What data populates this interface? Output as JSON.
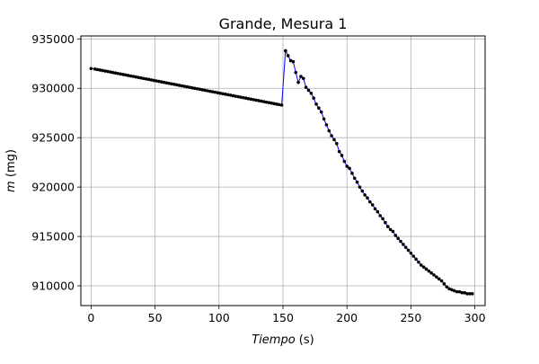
{
  "chart_data": {
    "type": "line",
    "title": "Grande, Mesura 1",
    "xlabel_var": "Tiempo",
    "xlabel_unit": " (s)",
    "ylabel_var": "m",
    "ylabel_unit": " (mg)",
    "xlim": [
      -8,
      308
    ],
    "ylim": [
      908000,
      935300
    ],
    "xticks": [
      0,
      50,
      100,
      150,
      200,
      250,
      300
    ],
    "yticks": [
      910000,
      915000,
      920000,
      925000,
      930000,
      935000
    ],
    "grid": true,
    "line_color": "#0000ff",
    "marker_color": "#000000",
    "series": [
      {
        "x": [
          0,
          3,
          5,
          7,
          9,
          11,
          13,
          15,
          17,
          19,
          21,
          23,
          25,
          27,
          29,
          31,
          33,
          35,
          37,
          39,
          41,
          43,
          45,
          47,
          49,
          51,
          53,
          55,
          57,
          59,
          61,
          63,
          65,
          67,
          69,
          71,
          73,
          75,
          77,
          79,
          81,
          83,
          85,
          87,
          89,
          91,
          93,
          95,
          97,
          99,
          101,
          103,
          105,
          107,
          109,
          111,
          113,
          115,
          117,
          119,
          121,
          123,
          125,
          127,
          129,
          131,
          133,
          135,
          137,
          139,
          141,
          143,
          145,
          147,
          149,
          152,
          154,
          156,
          158,
          160,
          162,
          164,
          166,
          168,
          170,
          172,
          174,
          176,
          178,
          180,
          182,
          184,
          186,
          188,
          190,
          192,
          194,
          196,
          198,
          200,
          202,
          204,
          206,
          208,
          210,
          212,
          214,
          216,
          218,
          220,
          222,
          224,
          226,
          228,
          230,
          232,
          234,
          236,
          238,
          240,
          242,
          244,
          246,
          248,
          250,
          252,
          254,
          256,
          258,
          260,
          262,
          264,
          266,
          268,
          270,
          272,
          274,
          276,
          278,
          280,
          282,
          284,
          286,
          288,
          290,
          292,
          294,
          296,
          298
        ],
        "y": [
          932000,
          931950,
          931900,
          931850,
          931800,
          931750,
          931700,
          931650,
          931600,
          931550,
          931500,
          931450,
          931400,
          931350,
          931300,
          931250,
          931200,
          931150,
          931100,
          931050,
          931000,
          930950,
          930900,
          930850,
          930800,
          930750,
          930700,
          930650,
          930600,
          930550,
          930500,
          930450,
          930400,
          930350,
          930300,
          930250,
          930200,
          930150,
          930100,
          930050,
          930000,
          929950,
          929900,
          929850,
          929800,
          929750,
          929700,
          929650,
          929600,
          929550,
          929500,
          929450,
          929400,
          929350,
          929300,
          929250,
          929200,
          929150,
          929100,
          929050,
          929000,
          928950,
          928900,
          928850,
          928800,
          928750,
          928700,
          928650,
          928600,
          928550,
          928500,
          928450,
          928400,
          928350,
          928300,
          933800,
          933300,
          932800,
          932700,
          931600,
          930600,
          931200,
          931000,
          930100,
          929800,
          929500,
          929000,
          928400,
          928000,
          927600,
          926900,
          926300,
          925700,
          925200,
          924800,
          924400,
          923600,
          923200,
          922600,
          922100,
          921900,
          921400,
          920900,
          920500,
          920000,
          919600,
          919200,
          918900,
          918500,
          918200,
          917800,
          917500,
          917100,
          916800,
          916400,
          916000,
          915700,
          915500,
          915100,
          914800,
          914500,
          914200,
          913900,
          913600,
          913300,
          913000,
          912700,
          912400,
          912100,
          911900,
          911700,
          911500,
          911300,
          911100,
          910900,
          910700,
          910500,
          910200,
          909900,
          909700,
          909600,
          909500,
          909400,
          909400,
          909300,
          909300,
          909200,
          909200,
          909200
        ]
      }
    ]
  }
}
